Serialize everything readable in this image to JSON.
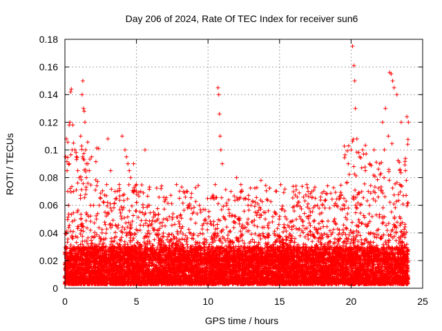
{
  "chart_data": {
    "type": "scatter",
    "title": "Day 206 of 2024, Rate Of TEC Index for receiver sun6",
    "xlabel": "GPS time / hours",
    "ylabel": "ROTI / TECUs",
    "xlim": [
      0,
      25
    ],
    "ylim": [
      0,
      0.18
    ],
    "xticks": [
      0,
      5,
      10,
      15,
      20,
      25
    ],
    "xtick_labels": [
      "0",
      "5",
      "10",
      "15",
      "20",
      "25"
    ],
    "yticks": [
      0,
      0.02,
      0.04,
      0.06,
      0.08,
      0.1,
      0.12,
      0.14,
      0.16,
      0.18
    ],
    "ytick_labels": [
      "0",
      "0.02",
      "0.04",
      "0.06",
      "0.08",
      "0.1",
      "0.12",
      "0.14",
      "0.16",
      "0.18"
    ],
    "grid": true,
    "marker": "+",
    "color": "#ff0000",
    "series": [
      {
        "name": "ROTI",
        "x": [
          0.05,
          0.1,
          0.15,
          0.2,
          0.25,
          0.3,
          0.35,
          0.4,
          0.45,
          0.5,
          0.55,
          0.6,
          0.7,
          0.8,
          0.9,
          1.0,
          1.1,
          1.2,
          1.25,
          1.3,
          1.35,
          1.4,
          1.45,
          1.5,
          1.6,
          1.7,
          1.8,
          2.0,
          2.2,
          2.5,
          2.8,
          3.0,
          3.2,
          3.5,
          3.8,
          4.0,
          4.2,
          4.3,
          4.4,
          4.5,
          4.8,
          5.0,
          5.3,
          5.6,
          5.9,
          6.2,
          6.5,
          7.0,
          7.5,
          7.8,
          8.0,
          8.3,
          8.6,
          9.0,
          9.4,
          9.8,
          10.2,
          10.5,
          10.7,
          10.75,
          10.8,
          10.85,
          10.9,
          11.0,
          11.3,
          11.6,
          12.0,
          12.3,
          12.6,
          13.0,
          13.3,
          13.7,
          14.0,
          14.5,
          15.0,
          15.5,
          16.0,
          16.5,
          16.9,
          17.0,
          17.5,
          18.0,
          18.5,
          19.0,
          19.5,
          19.8,
          20.0,
          20.1,
          20.2,
          20.25,
          20.3,
          20.4,
          20.6,
          20.8,
          21.0,
          21.3,
          21.6,
          22.0,
          22.2,
          22.4,
          22.6,
          22.7,
          22.8,
          22.9,
          23.0,
          23.2,
          23.5,
          23.8,
          23.9,
          24.0,
          0.3,
          0.6,
          1.5,
          2.4,
          3.6,
          4.6,
          6.8,
          8.8,
          12.8,
          13.9,
          16.2,
          18.8,
          21.2,
          22.3,
          23.4
        ],
        "y": [
          0.095,
          0.108,
          0.085,
          0.07,
          0.06,
          0.118,
          0.12,
          0.142,
          0.144,
          0.1,
          0.118,
          0.105,
          0.1,
          0.095,
          0.085,
          0.08,
          0.11,
          0.14,
          0.15,
          0.13,
          0.128,
          0.12,
          0.1,
          0.09,
          0.09,
          0.085,
          0.06,
          0.06,
          0.05,
          0.065,
          0.055,
          0.108,
          0.085,
          0.07,
          0.075,
          0.11,
          0.1,
          0.095,
          0.09,
          0.085,
          0.09,
          0.075,
          0.07,
          0.1,
          0.06,
          0.055,
          0.05,
          0.045,
          0.05,
          0.075,
          0.065,
          0.07,
          0.06,
          0.055,
          0.06,
          0.05,
          0.065,
          0.075,
          0.145,
          0.14,
          0.126,
          0.11,
          0.1,
          0.09,
          0.06,
          0.07,
          0.08,
          0.075,
          0.065,
          0.06,
          0.055,
          0.078,
          0.05,
          0.048,
          0.052,
          0.05,
          0.045,
          0.05,
          0.075,
          0.07,
          0.065,
          0.06,
          0.058,
          0.06,
          0.065,
          0.09,
          0.1,
          0.175,
          0.161,
          0.15,
          0.13,
          0.108,
          0.095,
          0.1,
          0.085,
          0.09,
          0.1,
          0.09,
          0.12,
          0.13,
          0.11,
          0.156,
          0.155,
          0.15,
          0.145,
          0.14,
          0.12,
          0.085,
          0.124,
          0.12,
          0.09,
          0.07,
          0.08,
          0.06,
          0.065,
          0.08,
          0.045,
          0.05,
          0.06,
          0.055,
          0.06,
          0.048,
          0.07,
          0.08,
          0.075
        ]
      }
    ],
    "noise": {
      "baseline_range": [
        0.003,
        0.03
      ],
      "count": 9000,
      "x_range": [
        0,
        24
      ]
    }
  }
}
